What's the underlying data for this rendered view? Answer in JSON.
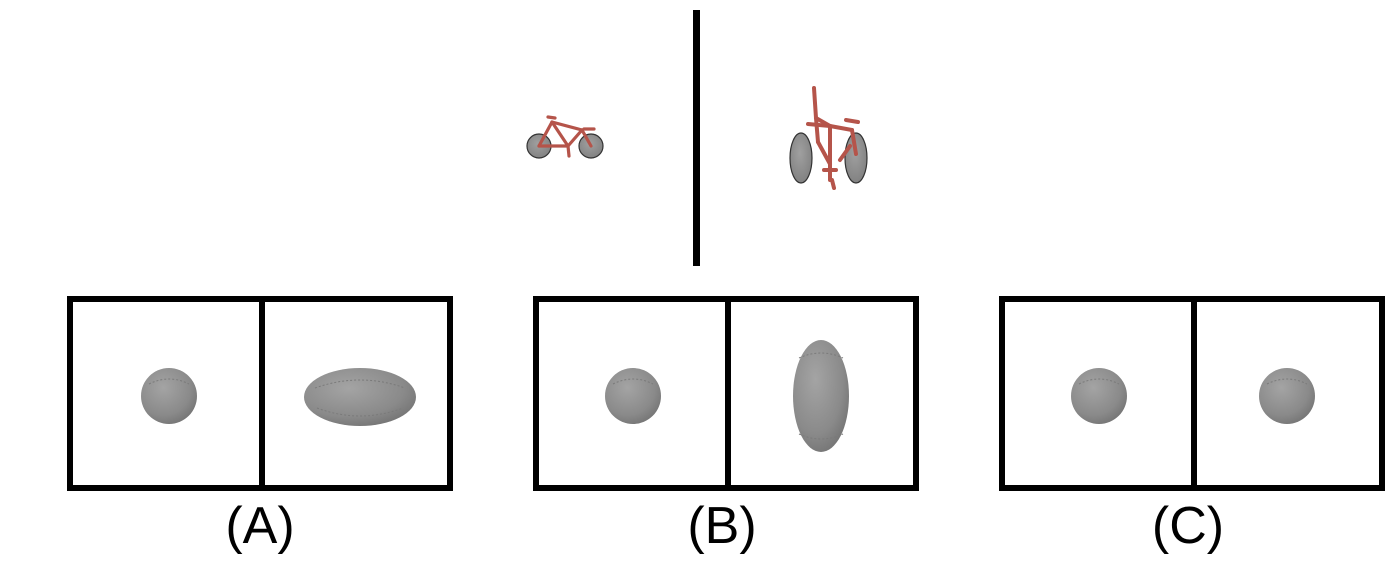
{
  "colors": {
    "bike_frame": "#b5544a",
    "wheel": "#8a8a8a",
    "ball": "#8d8d8d",
    "border": "#000000"
  },
  "bike_icons": [
    "bicycle-side",
    "bicycle-rotated"
  ],
  "options": [
    {
      "label": "(A)",
      "left_shape": "sphere",
      "right_shape": "horizontal-ellipsoid"
    },
    {
      "label": "(B)",
      "left_shape": "sphere",
      "right_shape": "vertical-ellipsoid"
    },
    {
      "label": "(C)",
      "left_shape": "sphere",
      "right_shape": "sphere"
    }
  ]
}
